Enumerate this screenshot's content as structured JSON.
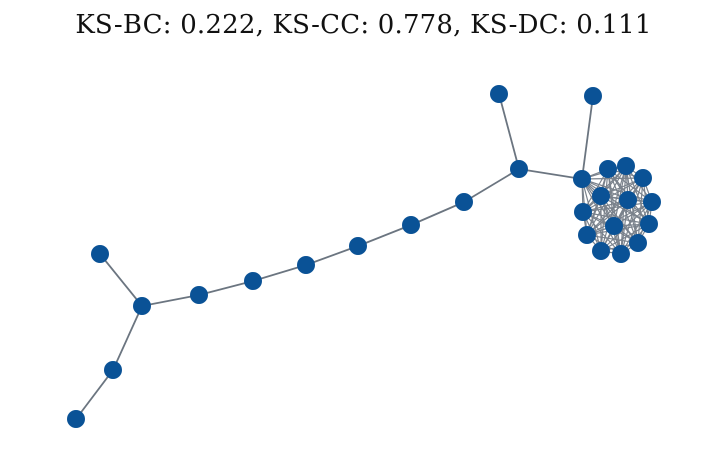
{
  "title": "KS-BC: 0.222, KS-CC: 0.778, KS-DC: 0.111",
  "colors": {
    "node": "#0a5296",
    "edge": "#6b7580",
    "background": "#ffffff"
  },
  "graph": {
    "node_count": 26,
    "structure": "path graph with a dense cluster on the right and a branching tail on the left"
  }
}
